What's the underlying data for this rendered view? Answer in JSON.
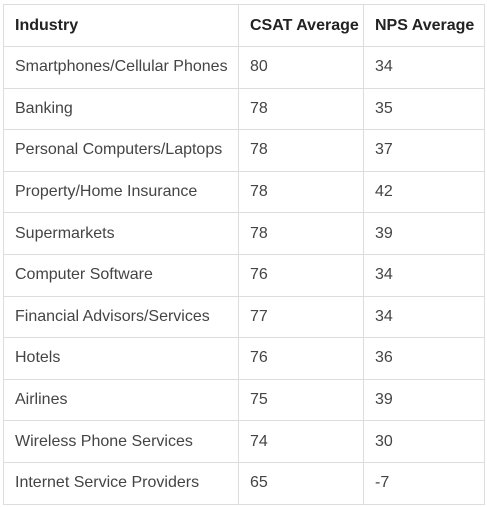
{
  "table": {
    "headers": [
      "Industry",
      "CSAT Average",
      "NPS Average"
    ],
    "rows": [
      [
        "Smartphones/Cellular Phones",
        "80",
        "34"
      ],
      [
        "Banking",
        "78",
        "35"
      ],
      [
        "Personal Computers/Laptops",
        "78",
        "37"
      ],
      [
        "Property/Home Insurance",
        "78",
        "42"
      ],
      [
        "Supermarkets",
        "78",
        "39"
      ],
      [
        "Computer Software",
        "76",
        "34"
      ],
      [
        "Financial Advisors/Services",
        "77",
        "34"
      ],
      [
        "Hotels",
        "76",
        "36"
      ],
      [
        "Airlines",
        "75",
        "39"
      ],
      [
        "Wireless Phone Services",
        "74",
        "30"
      ],
      [
        "Internet Service Providers",
        "65",
        "-7"
      ]
    ]
  }
}
